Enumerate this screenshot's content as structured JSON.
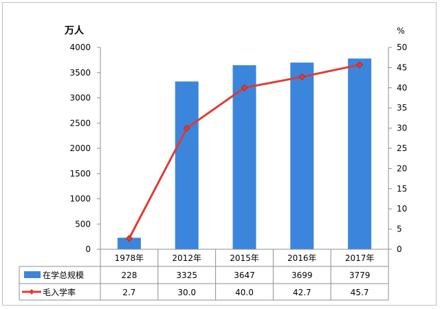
{
  "chart_data": {
    "type": "bar",
    "categories": [
      "1978年",
      "2012年",
      "2015年",
      "2016年",
      "2017年"
    ],
    "series": [
      {
        "name": "在学总规模",
        "type": "bar",
        "axis": "left",
        "color": "#3b86dc",
        "values": [
          228,
          3325,
          3647,
          3699,
          3779
        ],
        "labels": [
          "228",
          "3325",
          "3647",
          "3699",
          "3779"
        ]
      },
      {
        "name": "毛入学率",
        "type": "line",
        "axis": "right",
        "color": "#e03a34",
        "values": [
          2.7,
          30.0,
          40.0,
          42.7,
          45.7
        ],
        "labels": [
          "2.7",
          "30.0",
          "40.0",
          "42.7",
          "45.7"
        ]
      }
    ],
    "left_axis": {
      "unit": "万人",
      "ylim": [
        0,
        4000
      ],
      "ticks": [
        0,
        500,
        1000,
        1500,
        2000,
        2500,
        3000,
        3500,
        4000
      ]
    },
    "right_axis": {
      "unit": "%",
      "ylim": [
        0,
        50
      ],
      "ticks": [
        0,
        5,
        10,
        15,
        20,
        25,
        30,
        35,
        40,
        45,
        50
      ]
    },
    "grid": false,
    "legend": "data-table-below"
  }
}
